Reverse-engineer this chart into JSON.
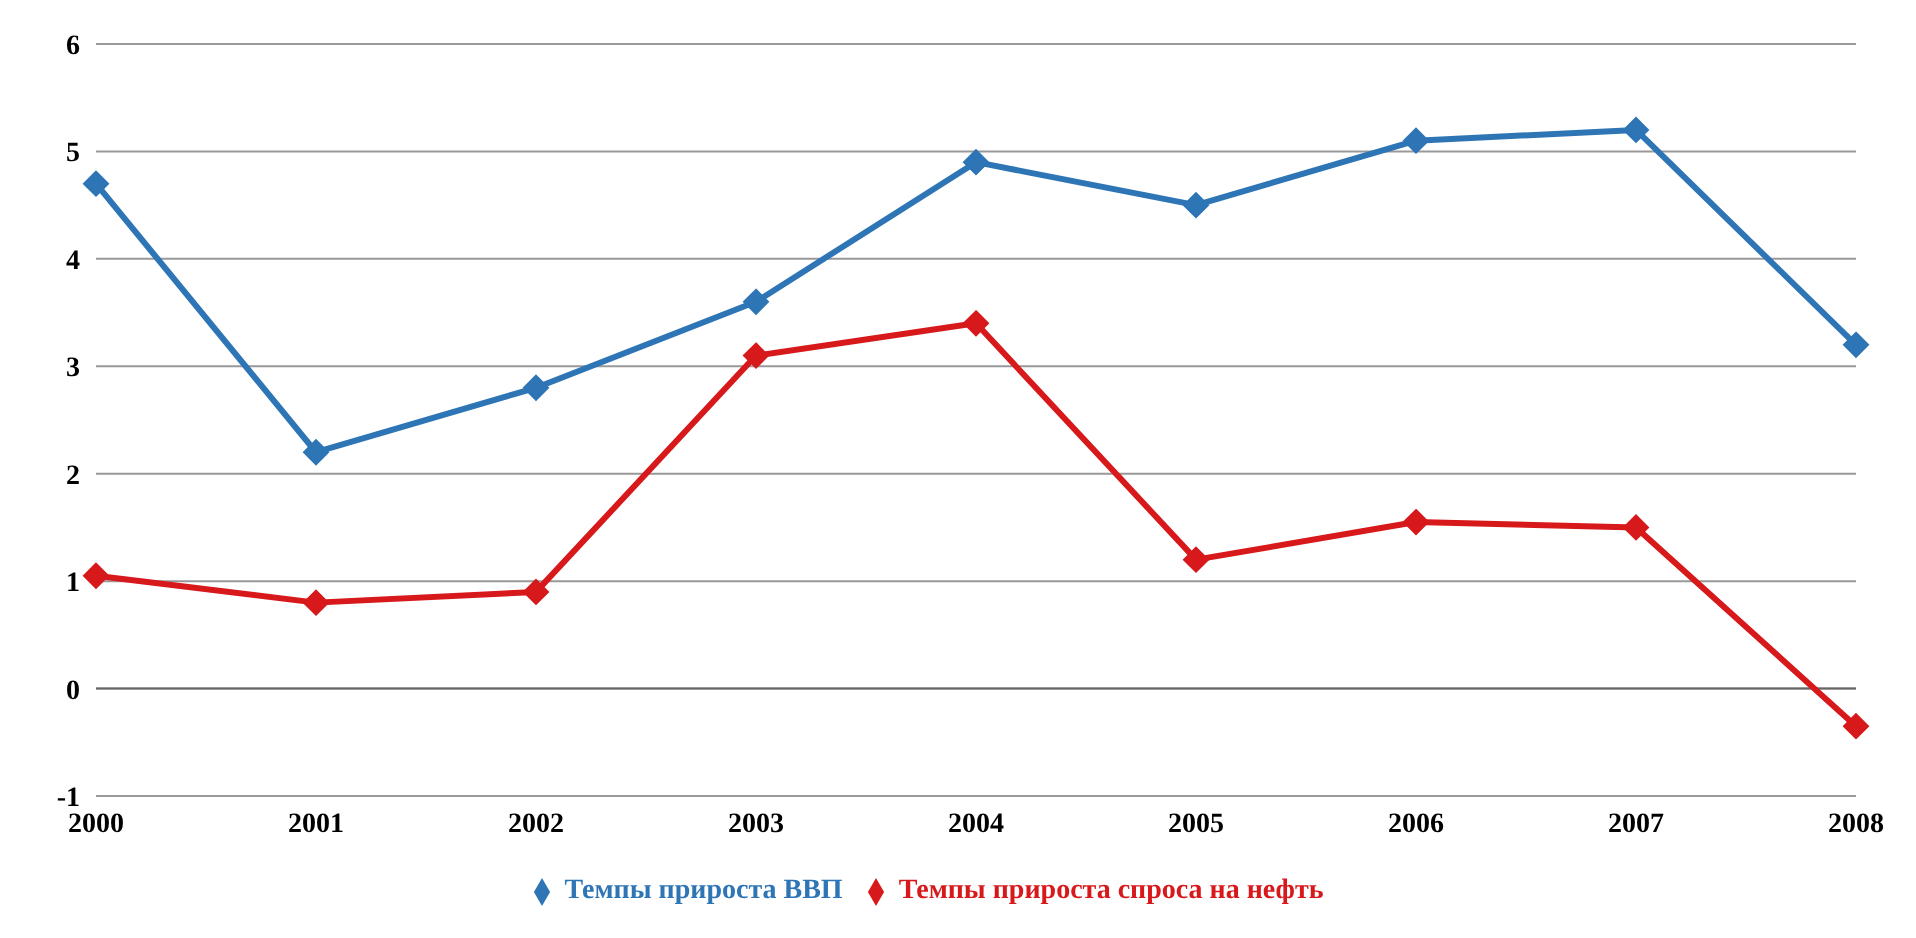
{
  "chart_data": {
    "type": "line",
    "categories": [
      "2000",
      "2001",
      "2002",
      "2003",
      "2004",
      "2005",
      "2006",
      "2007",
      "2008"
    ],
    "series": [
      {
        "name": "Темпы прироста ВВП",
        "color": "#2e75b6",
        "values": [
          4.7,
          2.2,
          2.8,
          3.6,
          4.9,
          4.5,
          5.1,
          5.2,
          3.2
        ]
      },
      {
        "name": "Темпы прироста спроса на нефть",
        "color": "#d7191c",
        "values": [
          1.05,
          0.8,
          0.9,
          3.1,
          3.4,
          1.2,
          1.55,
          1.5,
          -0.35
        ]
      }
    ],
    "ylim": [
      -1,
      6
    ],
    "yticks": [
      -1,
      0,
      1,
      2,
      3,
      4,
      5,
      6
    ],
    "grid": "y",
    "legend": "bottom",
    "marker": "diamond",
    "line_style": "solid"
  }
}
